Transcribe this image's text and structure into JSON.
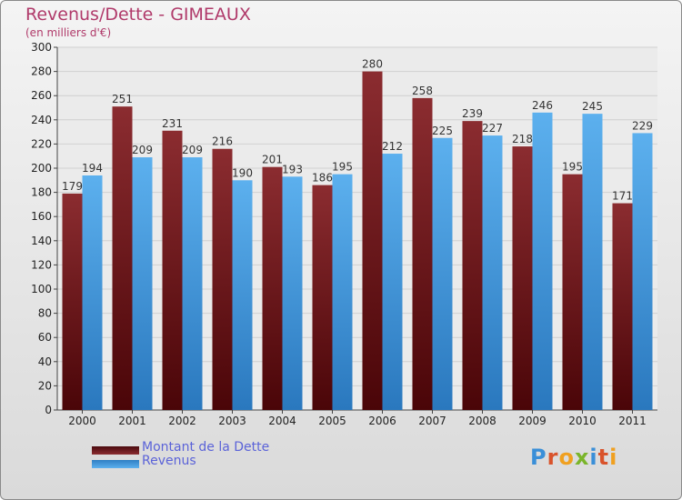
{
  "title": "Revenus/Dette - GIMEAUX",
  "subtitle": "(en milliers d'€)",
  "colors": {
    "dette": "#7a1f24",
    "revenus": "#3a8fd8",
    "title": "#b03a6a",
    "legend_text": "#5b63d8"
  },
  "legend": [
    {
      "label": "Montant de la Dette",
      "color": "#7a1f24"
    },
    {
      "label": "Revenus",
      "color": "#3a8fd8"
    }
  ],
  "logo": {
    "text": "Proxiti"
  },
  "chart_data": {
    "type": "bar",
    "categories": [
      "2000",
      "2001",
      "2002",
      "2003",
      "2004",
      "2005",
      "2006",
      "2007",
      "2008",
      "2009",
      "2010",
      "2011"
    ],
    "series": [
      {
        "name": "Montant de la Dette",
        "values": [
          179,
          251,
          231,
          216,
          201,
          186,
          280,
          258,
          239,
          218,
          195,
          171
        ]
      },
      {
        "name": "Revenus",
        "values": [
          194,
          209,
          209,
          190,
          193,
          195,
          212,
          225,
          227,
          246,
          245,
          229
        ]
      }
    ],
    "ylim": [
      0,
      300
    ],
    "yticks": [
      0,
      20,
      40,
      60,
      80,
      100,
      120,
      140,
      160,
      180,
      200,
      220,
      240,
      260,
      280,
      300
    ],
    "grid": true,
    "data_labels": true,
    "legend_position": "bottom-left"
  }
}
